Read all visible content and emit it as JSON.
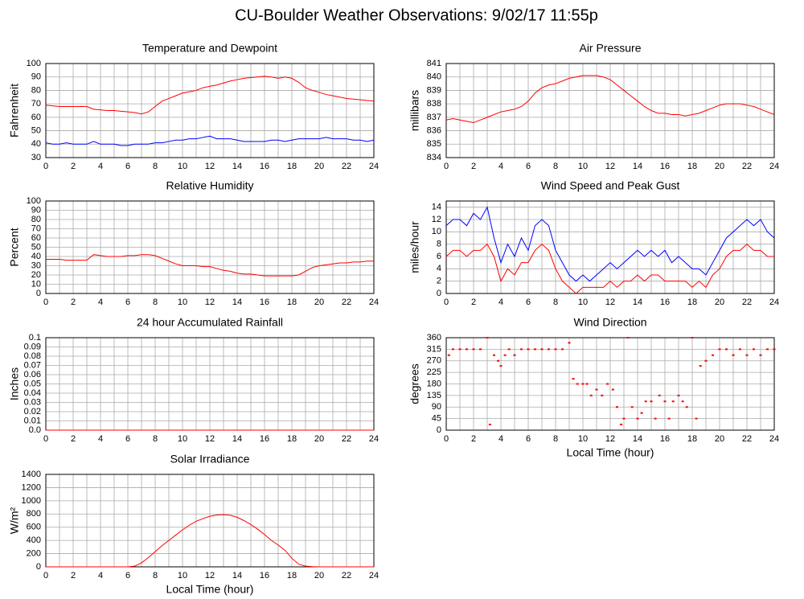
{
  "title": "CU-Boulder Weather Observations: 9/02/17 11:55p",
  "chart_data": [
    {
      "type": "line",
      "title": "Temperature and Dewpoint",
      "ylabel": "Fahrenheit",
      "x": [
        0,
        0.5,
        1,
        1.5,
        2,
        2.5,
        3,
        3.5,
        4,
        4.5,
        5,
        5.5,
        6,
        6.5,
        7,
        7.5,
        8,
        8.5,
        9,
        9.5,
        10,
        10.5,
        11,
        11.5,
        12,
        12.5,
        13,
        13.5,
        14,
        14.5,
        15,
        15.5,
        16,
        16.5,
        17,
        17.5,
        18,
        18.5,
        19,
        19.5,
        20,
        20.5,
        21,
        21.5,
        22,
        22.5,
        23,
        23.5,
        24
      ],
      "series": [
        {
          "color": "#ff0000",
          "values": [
            69,
            68.5,
            68,
            68,
            68,
            68,
            68,
            66,
            65.5,
            65,
            65,
            64.5,
            64,
            63.5,
            62.5,
            64,
            68,
            72,
            74,
            76,
            78,
            79,
            80,
            82,
            83,
            84,
            85.5,
            87,
            88,
            89,
            89.5,
            90,
            90.5,
            90,
            89,
            90,
            89,
            86,
            82,
            80,
            78.5,
            77,
            76,
            75,
            74,
            73.5,
            73,
            72.5,
            72
          ]
        },
        {
          "color": "#0000ff",
          "values": [
            41,
            40,
            40,
            41,
            40,
            40,
            40,
            42,
            40,
            40,
            40,
            39,
            39,
            40,
            40,
            40,
            41,
            41,
            42,
            43,
            43,
            44,
            44,
            45,
            46,
            44,
            44,
            44,
            43,
            42,
            42,
            42,
            42,
            43,
            43,
            42,
            43,
            44,
            44,
            44,
            44,
            45,
            44,
            44,
            44,
            43,
            43,
            42,
            43
          ]
        }
      ],
      "xlim": [
        0,
        24
      ],
      "xticks": [
        0,
        2,
        4,
        6,
        8,
        10,
        12,
        14,
        16,
        18,
        20,
        22,
        24
      ],
      "ylim": [
        30,
        100
      ],
      "yticks": [
        30,
        40,
        50,
        60,
        70,
        80,
        90,
        100
      ],
      "grid": true
    },
    {
      "type": "line",
      "title": "Air Pressure",
      "ylabel": "millibars",
      "x": [
        0,
        0.5,
        1,
        1.5,
        2,
        2.5,
        3,
        3.5,
        4,
        4.5,
        5,
        5.5,
        6,
        6.5,
        7,
        7.5,
        8,
        8.5,
        9,
        9.5,
        10,
        10.5,
        11,
        11.5,
        12,
        12.5,
        13,
        13.5,
        14,
        14.5,
        15,
        15.5,
        16,
        16.5,
        17,
        17.5,
        18,
        18.5,
        19,
        19.5,
        20,
        20.5,
        21,
        21.5,
        22,
        22.5,
        23,
        23.5,
        24
      ],
      "series": [
        {
          "color": "#ff0000",
          "values": [
            836.8,
            836.9,
            836.8,
            836.7,
            836.6,
            836.8,
            837,
            837.2,
            837.4,
            837.5,
            837.6,
            837.8,
            838.2,
            838.8,
            839.2,
            839.4,
            839.5,
            839.7,
            839.9,
            840,
            840.1,
            840.1,
            840.1,
            840,
            839.8,
            839.4,
            839,
            838.6,
            838.2,
            837.8,
            837.5,
            837.3,
            837.3,
            837.2,
            837.2,
            837.1,
            837.2,
            837.3,
            837.5,
            837.7,
            837.9,
            838,
            838,
            838,
            837.9,
            837.8,
            837.6,
            837.4,
            837.2
          ]
        }
      ],
      "xlim": [
        0,
        24
      ],
      "xticks": [
        0,
        2,
        4,
        6,
        8,
        10,
        12,
        14,
        16,
        18,
        20,
        22,
        24
      ],
      "ylim": [
        834,
        841
      ],
      "yticks": [
        834,
        835,
        836,
        837,
        838,
        839,
        840,
        841
      ],
      "grid": true
    },
    {
      "type": "line",
      "title": "Relative Humidity",
      "ylabel": "Percent",
      "x": [
        0,
        0.5,
        1,
        1.5,
        2,
        2.5,
        3,
        3.5,
        4,
        4.5,
        5,
        5.5,
        6,
        6.5,
        7,
        7.5,
        8,
        8.5,
        9,
        9.5,
        10,
        10.5,
        11,
        11.5,
        12,
        12.5,
        13,
        13.5,
        14,
        14.5,
        15,
        15.5,
        16,
        16.5,
        17,
        17.5,
        18,
        18.5,
        19,
        19.5,
        20,
        20.5,
        21,
        21.5,
        22,
        22.5,
        23,
        23.5,
        24
      ],
      "series": [
        {
          "color": "#ff0000",
          "values": [
            37,
            37,
            37,
            36,
            36,
            36,
            36,
            42,
            41,
            40,
            40,
            40,
            41,
            41,
            42,
            42,
            41,
            38,
            35,
            32,
            30,
            30,
            30,
            29,
            29,
            27,
            25,
            24,
            22,
            21,
            21,
            20,
            19,
            19,
            19,
            19,
            19,
            20,
            24,
            28,
            30,
            31,
            32,
            33,
            33,
            34,
            34,
            35,
            35
          ]
        }
      ],
      "xlim": [
        0,
        24
      ],
      "xticks": [
        0,
        2,
        4,
        6,
        8,
        10,
        12,
        14,
        16,
        18,
        20,
        22,
        24
      ],
      "ylim": [
        0,
        100
      ],
      "yticks": [
        0,
        10,
        20,
        30,
        40,
        50,
        60,
        70,
        80,
        90,
        100
      ],
      "grid": true
    },
    {
      "type": "line",
      "title": "Wind Speed and Peak Gust",
      "ylabel": "miles/hour",
      "x": [
        0,
        0.5,
        1,
        1.5,
        2,
        2.5,
        3,
        3.5,
        4,
        4.5,
        5,
        5.5,
        6,
        6.5,
        7,
        7.5,
        8,
        8.5,
        9,
        9.5,
        10,
        10.5,
        11,
        11.5,
        12,
        12.5,
        13,
        13.5,
        14,
        14.5,
        15,
        15.5,
        16,
        16.5,
        17,
        17.5,
        18,
        18.5,
        19,
        19.5,
        20,
        20.5,
        21,
        21.5,
        22,
        22.5,
        23,
        23.5,
        24
      ],
      "series": [
        {
          "color": "#0000ff",
          "values": [
            11,
            12,
            12,
            11,
            13,
            12,
            14,
            9,
            5,
            8,
            6,
            9,
            7,
            11,
            12,
            11,
            7,
            5,
            3,
            2,
            3,
            2,
            3,
            4,
            5,
            4,
            5,
            6,
            7,
            6,
            7,
            6,
            7,
            5,
            6,
            5,
            4,
            4,
            3,
            5,
            7,
            9,
            10,
            11,
            12,
            11,
            12,
            10,
            9
          ]
        },
        {
          "color": "#ff0000",
          "values": [
            6,
            7,
            7,
            6,
            7,
            7,
            8,
            6,
            2,
            4,
            3,
            5,
            5,
            7,
            8,
            7,
            4,
            2,
            1,
            0,
            1,
            1,
            1,
            1,
            2,
            1,
            2,
            2,
            3,
            2,
            3,
            3,
            2,
            2,
            2,
            2,
            1,
            2,
            1,
            3,
            4,
            6,
            7,
            7,
            8,
            7,
            7,
            6,
            6
          ]
        }
      ],
      "xlim": [
        0,
        24
      ],
      "xticks": [
        0,
        2,
        4,
        6,
        8,
        10,
        12,
        14,
        16,
        18,
        20,
        22,
        24
      ],
      "ylim": [
        0,
        15
      ],
      "yticks": [
        0,
        2,
        4,
        6,
        8,
        10,
        12,
        14
      ],
      "grid": true
    },
    {
      "type": "line",
      "title": "24 hour Accumulated Rainfall",
      "ylabel": "Inches",
      "x": [
        0,
        24
      ],
      "series": [
        {
          "color": "#ff0000",
          "values": [
            0,
            0
          ]
        }
      ],
      "xlim": [
        0,
        24
      ],
      "xticks": [
        0,
        2,
        4,
        6,
        8,
        10,
        12,
        14,
        16,
        18,
        20,
        22,
        24
      ],
      "ylim": [
        0,
        0.1
      ],
      "yticks": [
        {
          "value": 0,
          "label": "0.0"
        },
        0.01,
        0.02,
        0.03,
        0.04,
        0.05,
        0.06,
        0.07,
        0.08,
        0.09,
        0.1
      ],
      "grid": true
    },
    {
      "type": "scatter",
      "title": "Wind Direction",
      "ylabel": "degrees",
      "xlabel": "Local Time (hour)",
      "x": [
        0.2,
        0.5,
        1,
        1.5,
        2,
        2.5,
        3,
        3.2,
        3.5,
        3.8,
        4,
        4.3,
        4.6,
        5,
        5.5,
        6,
        6.5,
        7,
        7.5,
        8,
        8.5,
        9,
        9.3,
        9.6,
        10,
        10.3,
        10.6,
        11,
        11.4,
        11.8,
        12.2,
        12.5,
        12.8,
        13,
        13.3,
        13.6,
        14,
        14.3,
        14.6,
        15,
        15.3,
        15.6,
        16,
        16.3,
        16.6,
        17,
        17.3,
        17.6,
        18,
        18.3,
        18.6,
        19,
        19.5,
        20,
        20.5,
        21,
        21.5,
        22,
        22.5,
        23,
        23.5,
        24
      ],
      "series": [
        {
          "color": "#ff0000",
          "values": [
            292,
            315,
            315,
            315,
            315,
            315,
            360,
            22,
            292,
            270,
            250,
            292,
            315,
            292,
            315,
            315,
            315,
            315,
            315,
            315,
            315,
            340,
            200,
            180,
            180,
            180,
            135,
            158,
            135,
            180,
            158,
            90,
            22,
            45,
            360,
            90,
            45,
            67,
            112,
            112,
            45,
            135,
            112,
            45,
            112,
            135,
            112,
            90,
            360,
            45,
            250,
            270,
            292,
            315,
            315,
            292,
            315,
            292,
            315,
            292,
            315,
            315
          ]
        }
      ],
      "xlim": [
        0,
        24
      ],
      "xticks": [
        0,
        2,
        4,
        6,
        8,
        10,
        12,
        14,
        16,
        18,
        20,
        22,
        24
      ],
      "ylim": [
        0,
        360
      ],
      "yticks": [
        0,
        45,
        90,
        135,
        180,
        225,
        270,
        315,
        360
      ],
      "grid": true
    },
    {
      "type": "line",
      "title": "Solar Irradiance",
      "ylabel": "W/m²",
      "xlabel": "Local Time (hour)",
      "x": [
        0,
        0.5,
        1,
        1.5,
        2,
        2.5,
        3,
        3.5,
        4,
        4.5,
        5,
        5.5,
        6,
        6.5,
        7,
        7.5,
        8,
        8.5,
        9,
        9.5,
        10,
        10.5,
        11,
        11.5,
        12,
        12.5,
        13,
        13.5,
        14,
        14.5,
        15,
        15.5,
        16,
        16.5,
        17,
        17.5,
        18,
        18.5,
        19,
        19.5,
        20,
        20.5,
        21,
        21.5,
        22,
        22.5,
        23,
        23.5,
        24
      ],
      "series": [
        {
          "color": "#ff0000",
          "values": [
            0,
            0,
            0,
            0,
            0,
            0,
            0,
            0,
            0,
            0,
            0,
            0,
            0,
            10,
            60,
            140,
            230,
            320,
            400,
            480,
            560,
            630,
            690,
            730,
            765,
            785,
            790,
            780,
            750,
            700,
            640,
            570,
            490,
            400,
            330,
            250,
            130,
            40,
            10,
            3,
            0,
            0,
            0,
            0,
            0,
            0,
            0,
            0,
            0
          ]
        }
      ],
      "xlim": [
        0,
        24
      ],
      "xticks": [
        0,
        2,
        4,
        6,
        8,
        10,
        12,
        14,
        16,
        18,
        20,
        22,
        24
      ],
      "ylim": [
        0,
        1400
      ],
      "yticks": [
        0,
        200,
        400,
        600,
        800,
        1000,
        1200,
        1400
      ],
      "grid": true
    }
  ]
}
